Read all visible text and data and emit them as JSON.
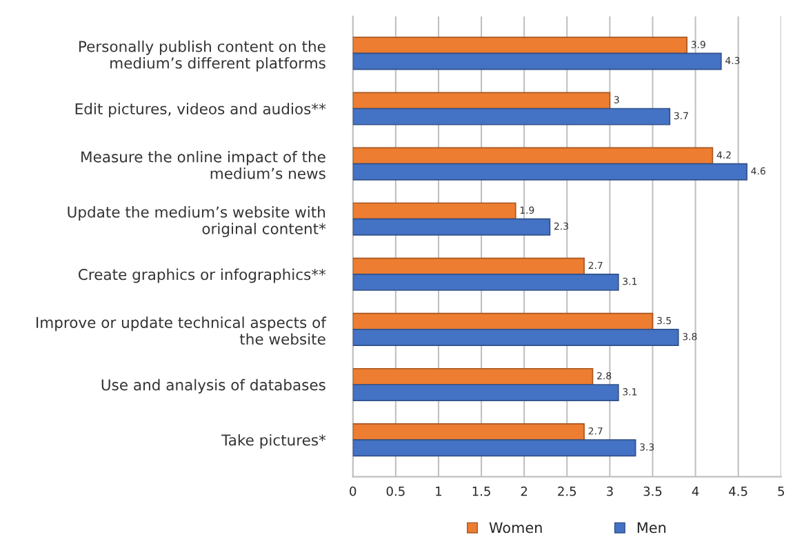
{
  "chart_data": {
    "type": "bar",
    "orientation": "horizontal",
    "categories": [
      "Personally publish content on the\nmedium’s different platforms",
      "Edit pictures, videos and audios**",
      "Measure the online impact of the\nmedium’s news",
      "Update the medium’s website with\noriginal content*",
      "Create graphics or infographics**",
      "Improve or update technical aspects of\nthe website",
      "Use and analysis of databases",
      "Take pictures*"
    ],
    "series": [
      {
        "name": "Women",
        "color": "#ed7d31",
        "values": [
          3.9,
          3,
          4.2,
          1.9,
          2.7,
          3.5,
          2.8,
          2.7
        ]
      },
      {
        "name": "Men",
        "color": "#4472c4",
        "values": [
          4.3,
          3.7,
          4.6,
          2.3,
          3.1,
          3.8,
          3.1,
          3.3
        ]
      }
    ],
    "xlim": [
      0,
      5
    ],
    "xticks": [
      0,
      0.5,
      1,
      1.5,
      2,
      2.5,
      3,
      3.5,
      4,
      4.5,
      5
    ],
    "grid": "x",
    "legend": "bottom",
    "data_labels": true
  }
}
